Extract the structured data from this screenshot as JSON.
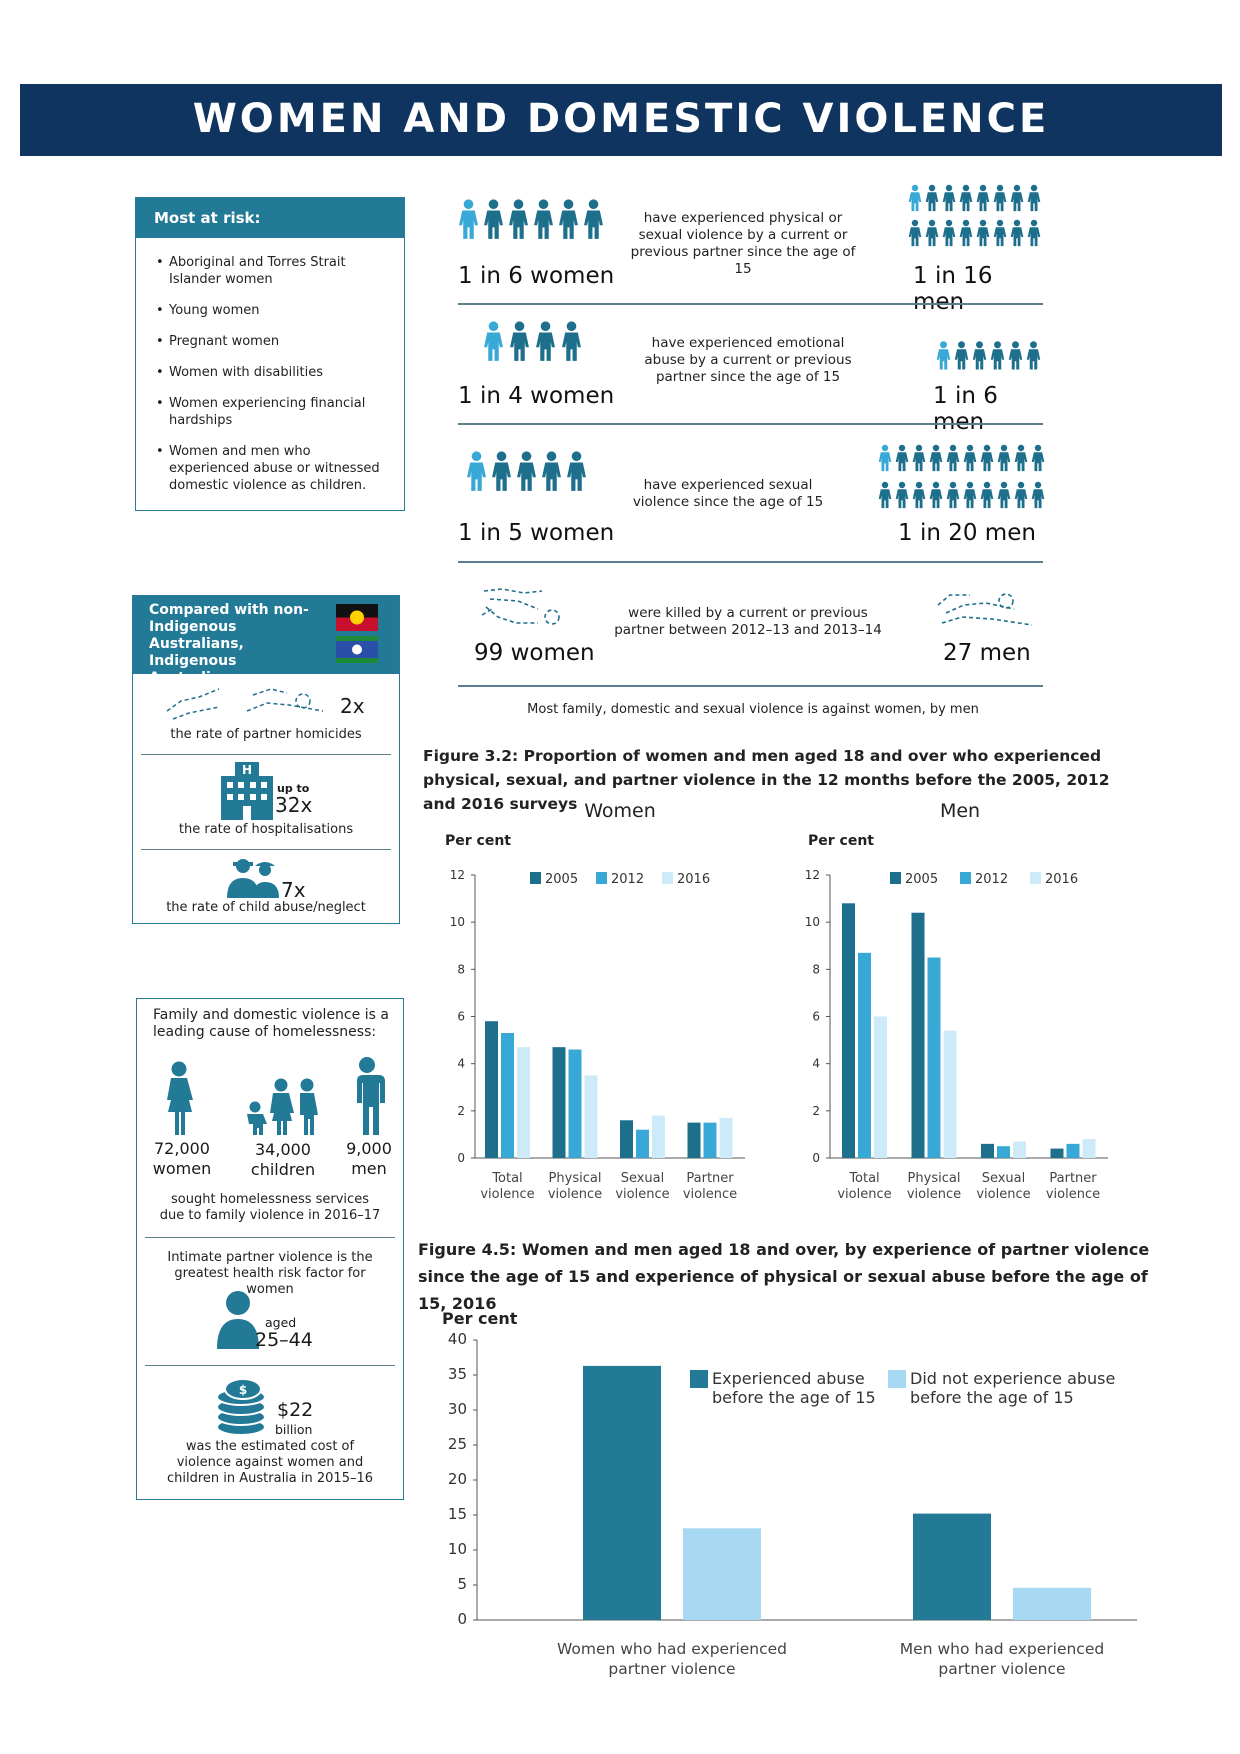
{
  "title": "WOMEN AND DOMESTIC VIOLENCE",
  "colors": {
    "navy": "#0f3460",
    "teal": "#237a96",
    "dark_teal": "#1d6f8b",
    "mid_blue": "#38a9d6",
    "light_blue": "#a7d9f2",
    "lightest_blue": "#cdeaf8"
  },
  "risk": {
    "heading": "Most at risk:",
    "items": [
      "Aboriginal and Torres Strait Islander women",
      "Young women",
      "Pregnant women",
      "Women with disabilities",
      "Women experiencing financial hardships",
      "Women and men who experienced abuse or witnessed domestic violence as children."
    ]
  },
  "stats": [
    {
      "women": "1 in 6 women",
      "desc": "have experienced physical or sexual violence by a current or previous partner since the age of 15",
      "men": "1 in 16 men",
      "women_icons": 6,
      "women_highlight": 1,
      "men_icons": 16,
      "men_highlight": 1,
      "icon": "person-icon"
    },
    {
      "women": "1 in 4 women",
      "desc": "have experienced emotional abuse by a current or previous partner since the age of 15",
      "men": "1 in 6 men",
      "women_icons": 4,
      "women_highlight": 1,
      "men_icons": 6,
      "men_highlight": 1,
      "icon": "person-icon"
    },
    {
      "women": "1 in 5 women",
      "desc": "have experienced sexual violence since the age of 15",
      "men": "1 in 20 men",
      "women_icons": 5,
      "women_highlight": 1,
      "men_icons": 20,
      "men_highlight": 1,
      "icon": "person-icon"
    },
    {
      "women": "99 women",
      "desc": "were killed by a current or previous partner between 2012–13 and 2013–14",
      "men": "27 men",
      "icon": "body-outline-icon"
    }
  ],
  "stats_footer": "Most family, domestic and sexual violence is against women, by men",
  "indigenous": {
    "heading": "Compared with non-Indigenous Australians, Indigenous Australians experience:",
    "flags": [
      "aboriginal-flag-icon",
      "torres-strait-flag-icon"
    ],
    "items": [
      {
        "icon": "body-outline-icon",
        "prefix": "",
        "value": "2x",
        "label": "the rate of partner homicides"
      },
      {
        "icon": "hospital-icon",
        "prefix": "up to",
        "value": "32x",
        "label": "the rate of hospitalisations"
      },
      {
        "icon": "family-icon",
        "prefix": "",
        "value": "7x",
        "label": "the rate of child abuse/neglect"
      }
    ]
  },
  "homeless": {
    "heading": "Family and domestic violence is a leading cause of homelessness:",
    "groups": [
      {
        "number": "72,000",
        "label": "women",
        "icon": "woman-icon"
      },
      {
        "number": "34,000",
        "label": "children",
        "icon": "children-icon"
      },
      {
        "number": "9,000",
        "label": "men",
        "icon": "man-icon"
      }
    ],
    "footnote": "sought homelessness services due to family violence in 2016–17",
    "health_heading": "Intimate partner violence is the greatest health risk factor for women",
    "health_aged": "aged",
    "health_range": "25–44",
    "cost_value": "$22",
    "cost_unit": "billion",
    "cost_desc": "was the estimated cost of violence against women and children in Australia in 2015–16"
  },
  "fig32": {
    "title": "Figure 3.2: Proportion of women and men aged 18 and over who experienced physical, sexual, and partner violence in the 12 months before the 2005, 2012 and 2016 surveys"
  },
  "fig45": {
    "title": "Figure 4.5: Women and men aged 18 and over, by experience of partner violence since the age of 15 and experience of physical or sexual abuse before the age of 15, 2016"
  },
  "chart_data": [
    {
      "type": "bar",
      "title": "Women",
      "ylabel": "Per cent",
      "ylim": [
        0,
        12
      ],
      "yticks": [
        0,
        2,
        4,
        6,
        8,
        10,
        12
      ],
      "categories": [
        "Total violence",
        "Physical violence",
        "Sexual violence",
        "Partner violence"
      ],
      "series": [
        {
          "name": "2005",
          "color": "#1d6f8b",
          "values": [
            5.8,
            4.7,
            1.6,
            1.5
          ]
        },
        {
          "name": "2012",
          "color": "#38a9d6",
          "values": [
            5.3,
            4.6,
            1.2,
            1.5
          ]
        },
        {
          "name": "2016",
          "color": "#cdeaf8",
          "values": [
            4.7,
            3.5,
            1.8,
            1.7
          ]
        }
      ],
      "legend": "top"
    },
    {
      "type": "bar",
      "title": "Men",
      "ylabel": "Per cent",
      "ylim": [
        0,
        12
      ],
      "yticks": [
        0,
        2,
        4,
        6,
        8,
        10,
        12
      ],
      "categories": [
        "Total violence",
        "Physical violence",
        "Sexual violence",
        "Partner violence"
      ],
      "series": [
        {
          "name": "2005",
          "color": "#1d6f8b",
          "values": [
            10.8,
            10.4,
            0.6,
            0.4
          ]
        },
        {
          "name": "2012",
          "color": "#38a9d6",
          "values": [
            8.7,
            8.5,
            0.5,
            0.6
          ]
        },
        {
          "name": "2016",
          "color": "#cdeaf8",
          "values": [
            6.0,
            5.4,
            0.7,
            0.8
          ]
        }
      ],
      "legend": "top"
    },
    {
      "type": "bar",
      "title": "",
      "ylabel": "Per cent",
      "ylim": [
        0,
        40
      ],
      "yticks": [
        0,
        5,
        10,
        15,
        20,
        25,
        30,
        35,
        40
      ],
      "categories": [
        "Women who had experienced partner violence",
        "Men who had experienced partner violence"
      ],
      "series": [
        {
          "name": "Experienced abuse before the age of 15",
          "color": "#237a96",
          "values": [
            36.3,
            15.2
          ]
        },
        {
          "name": "Did not experience abuse before the age of 15",
          "color": "#a7d9f2",
          "values": [
            13.1,
            4.6
          ]
        }
      ],
      "legend": "top-right"
    }
  ]
}
